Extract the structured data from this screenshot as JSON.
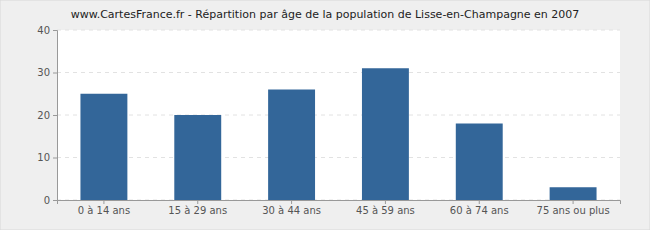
{
  "chart_data": {
    "type": "bar",
    "title": "www.CartesFrance.fr - Répartition par âge de la population de Lisse-en-Champagne en 2007",
    "categories": [
      "0 à 14 ans",
      "15 à 29 ans",
      "30 à 44 ans",
      "45 à 59 ans",
      "60 à 74 ans",
      "75 ans ou plus"
    ],
    "values": [
      25,
      20,
      26,
      31,
      18,
      3
    ],
    "color": "#336699",
    "ylim": [
      0,
      40
    ],
    "yticks": [
      0,
      10,
      20,
      30,
      40
    ],
    "grid": true
  }
}
